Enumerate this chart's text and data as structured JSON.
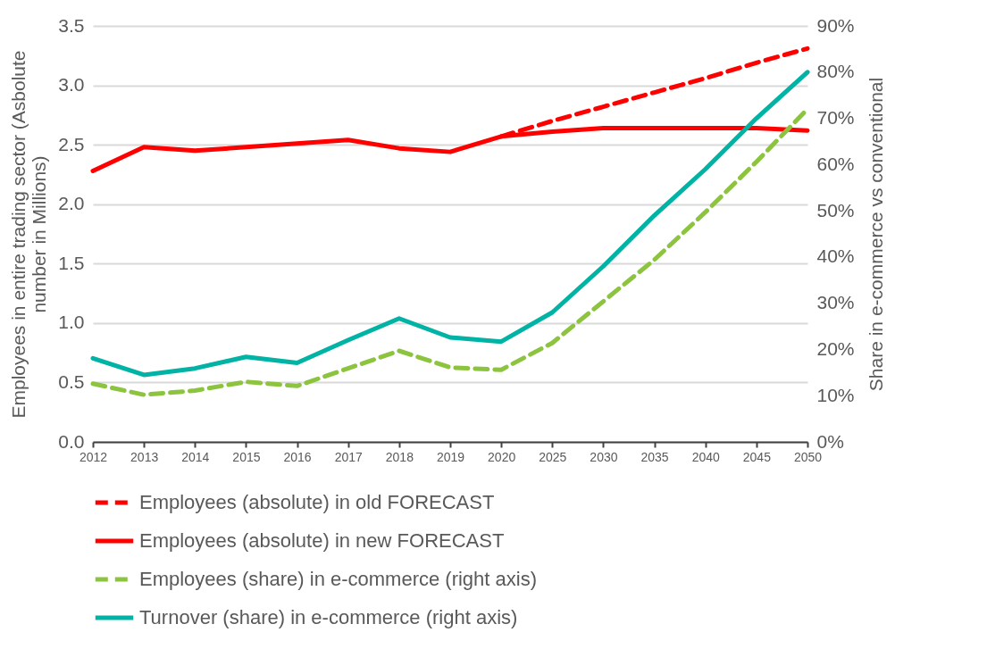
{
  "chart_data": {
    "type": "line",
    "ylabel": "Employees in entire trading sector (Asbolute number in Millions)",
    "y2label": "Share in e-commerce vs conventional",
    "categories": [
      "2012",
      "2013",
      "2014",
      "2015",
      "2016",
      "2017",
      "2018",
      "2019",
      "2020",
      "2025",
      "2030",
      "2035",
      "2040",
      "2045",
      "2050"
    ],
    "series": [
      {
        "name": "Employees (absolute) in old FORECAST",
        "color": "#ff0000",
        "line_style": "dashed",
        "values": [
          null,
          null,
          null,
          null,
          null,
          null,
          null,
          null,
          2.57,
          2.7,
          2.82,
          2.94,
          3.06,
          3.19,
          3.31
        ]
      },
      {
        "name": "Employees (absolute) in new FORECAST",
        "color": "#ff0000",
        "line_style": "solid",
        "values": [
          2.28,
          2.48,
          2.45,
          2.48,
          2.51,
          2.54,
          2.47,
          2.44,
          2.57,
          2.61,
          2.64,
          2.64,
          2.64,
          2.64,
          2.62
        ]
      },
      {
        "name": "Employees (share) in e-commerce (right axis)",
        "color": "#8cc43f",
        "line_style": "dashed",
        "axis": "y2",
        "values": [
          12.6,
          10.2,
          11.1,
          13.0,
          12.1,
          15.9,
          19.7,
          16.1,
          15.6,
          21.4,
          30.4,
          39.4,
          49.7,
          60.6,
          72
        ]
      },
      {
        "name": "Turnover (share) in e-commerce (right axis)",
        "color": "#00b3a4",
        "line_style": "solid",
        "axis": "y2",
        "values": [
          18.1,
          14.5,
          15.9,
          18.4,
          17.1,
          22.0,
          26.7,
          22.6,
          21.7,
          28,
          38,
          49,
          59,
          70,
          80
        ]
      }
    ],
    "ylim": [
      0,
      3.5
    ],
    "yticks": [
      {
        "value": 0,
        "label": "0.0"
      },
      {
        "value": 0.5,
        "label": "0.5"
      },
      {
        "value": 1,
        "label": "1.0"
      },
      {
        "value": 1.5,
        "label": "1.5"
      },
      {
        "value": 2,
        "label": "2.0"
      },
      {
        "value": 2.5,
        "label": "2.5"
      },
      {
        "value": 3,
        "label": "3.0"
      },
      {
        "value": 3.5,
        "label": "3.5"
      }
    ],
    "y2lim": [
      0,
      90
    ],
    "y2ticks": [
      {
        "value": 0,
        "label": "0%"
      },
      {
        "value": 10,
        "label": "10%"
      },
      {
        "value": 20,
        "label": "20%"
      },
      {
        "value": 30,
        "label": "30%"
      },
      {
        "value": 40,
        "label": "40%"
      },
      {
        "value": 50,
        "label": "50%"
      },
      {
        "value": 60,
        "label": "60%"
      },
      {
        "value": 70,
        "label": "70%"
      },
      {
        "value": 80,
        "label": "80%"
      },
      {
        "value": 90,
        "label": "90%"
      }
    ],
    "grid": "y",
    "legend": "bottom",
    "marker": "none"
  }
}
